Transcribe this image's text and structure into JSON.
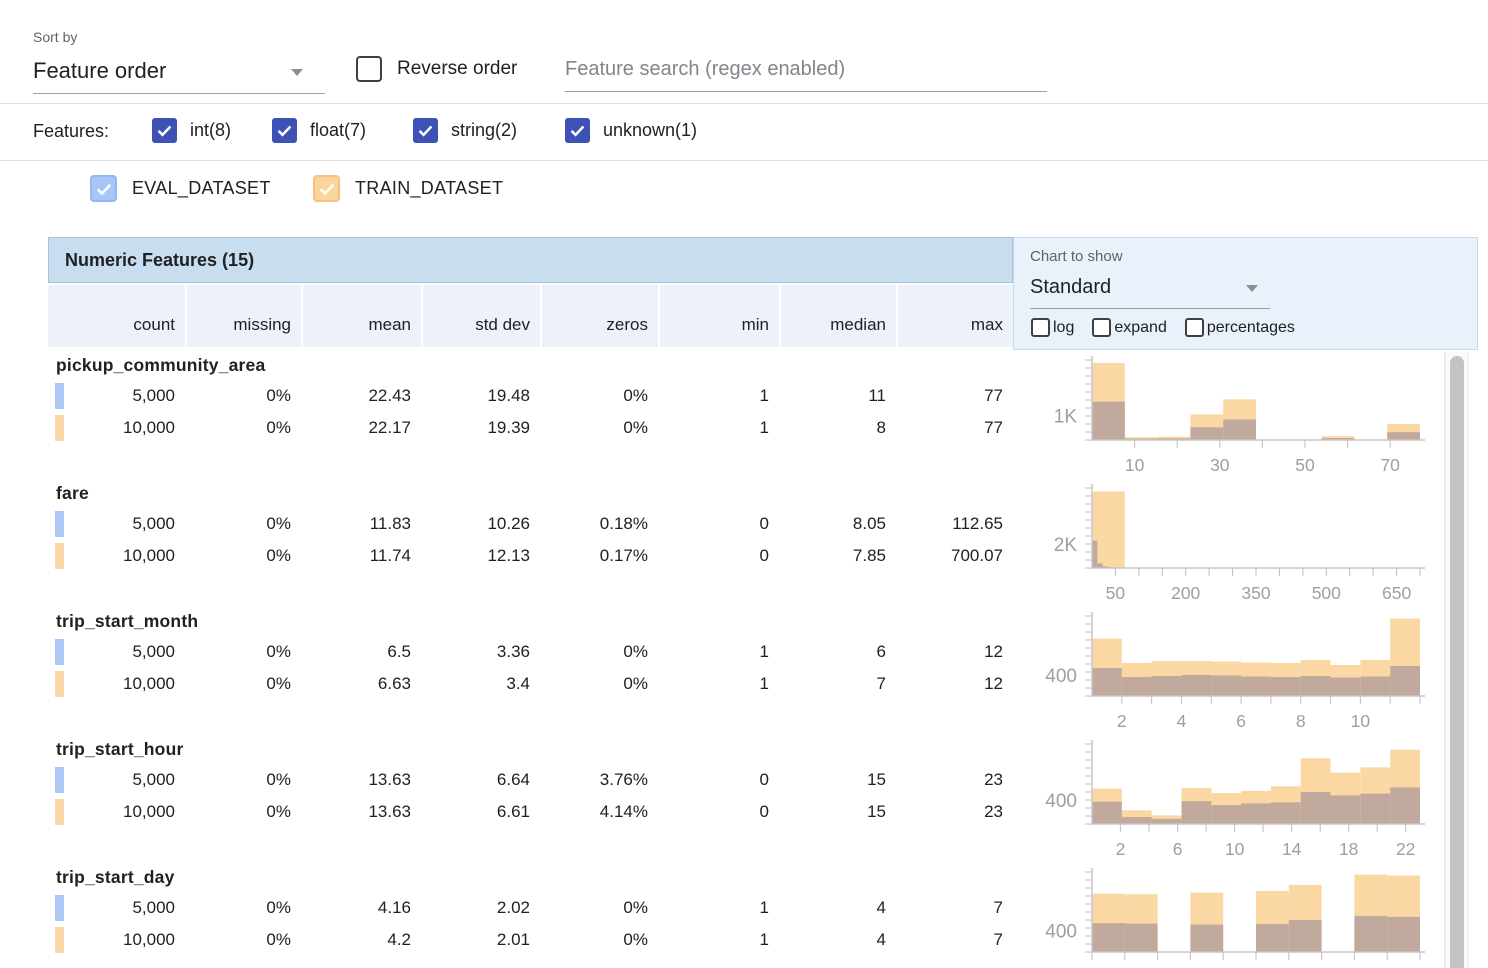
{
  "toolbar": {
    "sort_by_label": "Sort by",
    "sort_by_value": "Feature order",
    "reverse_order_label": "Reverse order",
    "search_placeholder": "Feature search (regex enabled)"
  },
  "features_filter": {
    "label": "Features:",
    "types": [
      {
        "label": "int(8)",
        "checked": true
      },
      {
        "label": "float(7)",
        "checked": true
      },
      {
        "label": "string(2)",
        "checked": true
      },
      {
        "label": "unknown(1)",
        "checked": true
      }
    ],
    "checkbox_color": "#3e51b5"
  },
  "datasets": [
    {
      "name": "EVAL_DATASET",
      "checked": true,
      "color": "#a5c6f6",
      "chip_color": "#adc9f8"
    },
    {
      "name": "TRAIN_DATASET",
      "checked": true,
      "color": "#fcd49d",
      "chip_color": "#fbd8a5"
    }
  ],
  "table": {
    "title": "Numeric Features (15)",
    "columns": [
      "count",
      "missing",
      "mean",
      "std dev",
      "zeros",
      "min",
      "median",
      "max"
    ],
    "chart_controls": {
      "label": "Chart to show",
      "selected": "Standard",
      "checkboxes": [
        {
          "label": "log",
          "checked": false
        },
        {
          "label": "expand",
          "checked": false
        },
        {
          "label": "percentages",
          "checked": false
        }
      ]
    }
  },
  "features": [
    {
      "name": "pickup_community_area",
      "rows": [
        {
          "dataset": "EVAL_DATASET",
          "count": "5,000",
          "missing": "0%",
          "mean": "22.43",
          "std_dev": "19.48",
          "zeros": "0%",
          "min": "1",
          "median": "11",
          "max": "77"
        },
        {
          "dataset": "TRAIN_DATASET",
          "count": "10,000",
          "missing": "0%",
          "mean": "22.17",
          "std_dev": "19.39",
          "zeros": "0%",
          "min": "1",
          "median": "8",
          "max": "77"
        }
      ]
    },
    {
      "name": "fare",
      "rows": [
        {
          "dataset": "EVAL_DATASET",
          "count": "5,000",
          "missing": "0%",
          "mean": "11.83",
          "std_dev": "10.26",
          "zeros": "0.18%",
          "min": "0",
          "median": "8.05",
          "max": "112.65"
        },
        {
          "dataset": "TRAIN_DATASET",
          "count": "10,000",
          "missing": "0%",
          "mean": "11.74",
          "std_dev": "12.13",
          "zeros": "0.17%",
          "min": "0",
          "median": "7.85",
          "max": "700.07"
        }
      ]
    },
    {
      "name": "trip_start_month",
      "rows": [
        {
          "dataset": "EVAL_DATASET",
          "count": "5,000",
          "missing": "0%",
          "mean": "6.5",
          "std_dev": "3.36",
          "zeros": "0%",
          "min": "1",
          "median": "6",
          "max": "12"
        },
        {
          "dataset": "TRAIN_DATASET",
          "count": "10,000",
          "missing": "0%",
          "mean": "6.63",
          "std_dev": "3.4",
          "zeros": "0%",
          "min": "1",
          "median": "7",
          "max": "12"
        }
      ]
    },
    {
      "name": "trip_start_hour",
      "rows": [
        {
          "dataset": "EVAL_DATASET",
          "count": "5,000",
          "missing": "0%",
          "mean": "13.63",
          "std_dev": "6.64",
          "zeros": "3.76%",
          "min": "0",
          "median": "15",
          "max": "23"
        },
        {
          "dataset": "TRAIN_DATASET",
          "count": "10,000",
          "missing": "0%",
          "mean": "13.63",
          "std_dev": "6.61",
          "zeros": "4.14%",
          "min": "0",
          "median": "15",
          "max": "23"
        }
      ]
    },
    {
      "name": "trip_start_day",
      "rows": [
        {
          "dataset": "EVAL_DATASET",
          "count": "5,000",
          "missing": "0%",
          "mean": "4.16",
          "std_dev": "2.02",
          "zeros": "0%",
          "min": "1",
          "median": "4",
          "max": "7"
        },
        {
          "dataset": "TRAIN_DATASET",
          "count": "10,000",
          "missing": "0%",
          "mean": "4.2",
          "std_dev": "2.01",
          "zeros": "0%",
          "min": "1",
          "median": "4",
          "max": "7"
        }
      ]
    }
  ],
  "chart_data": [
    {
      "type": "bar",
      "feature": "pickup_community_area",
      "xlim": [
        0,
        77
      ],
      "ymax": 3400,
      "ylabel": {
        "value": 1000,
        "text": "1K"
      },
      "xticks": [
        10,
        20,
        30,
        40,
        50,
        60,
        70
      ],
      "xlabels": [
        {
          "v": 10,
          "t": "10"
        },
        {
          "v": 30,
          "t": "30"
        },
        {
          "v": 50,
          "t": "50"
        },
        {
          "v": 70,
          "t": "70"
        }
      ],
      "series": [
        {
          "name": "TRAIN_DATASET",
          "color": "#fbd7a4",
          "bin_start": 0,
          "bin_width": 7.7,
          "values": [
            3270,
            120,
            140,
            1090,
            1730,
            20,
            10,
            160,
            20,
            680
          ]
        },
        {
          "name": "EVAL_DATASET_overlap",
          "color": "#c1a99e",
          "bin_start": 0,
          "bin_width": 7.7,
          "values": [
            1630,
            60,
            70,
            540,
            870,
            10,
            5,
            80,
            10,
            330
          ]
        }
      ]
    },
    {
      "type": "bar",
      "feature": "fare",
      "xlim": [
        0,
        700
      ],
      "ymax": 7000,
      "ylabel": {
        "value": 2000,
        "text": "2K"
      },
      "xticks": [
        50,
        100,
        150,
        200,
        250,
        300,
        350,
        400,
        450,
        500,
        550,
        600,
        650,
        700
      ],
      "xlabels": [
        {
          "v": 50,
          "t": "50"
        },
        {
          "v": 200,
          "t": "200"
        },
        {
          "v": 350,
          "t": "350"
        },
        {
          "v": 500,
          "t": "500"
        },
        {
          "v": 650,
          "t": "650"
        }
      ],
      "series": [
        {
          "name": "TRAIN_DATASET",
          "color": "#fbd7a4",
          "bin_start": 0,
          "bin_width": 70,
          "values": [
            6700,
            0,
            0,
            0,
            0,
            0,
            0,
            0,
            0,
            0
          ]
        },
        {
          "name": "EVAL_DATASET_overlap",
          "color": "#c1a99e",
          "bin_start": 0,
          "bin_width": 11.3,
          "values": [
            2400,
            400,
            150,
            80,
            40,
            20,
            10,
            5,
            0,
            0
          ]
        }
      ]
    },
    {
      "type": "bar",
      "feature": "trip_start_month",
      "xlim": [
        1,
        12
      ],
      "ymax": 1600,
      "ylabel": {
        "value": 400,
        "text": "400"
      },
      "xticks": [
        2,
        3,
        4,
        5,
        6,
        7,
        8,
        9,
        10,
        11,
        12
      ],
      "xlabels": [
        {
          "v": 2,
          "t": "2"
        },
        {
          "v": 4,
          "t": "4"
        },
        {
          "v": 6,
          "t": "6"
        },
        {
          "v": 8,
          "t": "8"
        },
        {
          "v": 10,
          "t": "10"
        }
      ],
      "series": [
        {
          "name": "TRAIN_DATASET",
          "color": "#fbd7a4",
          "bin_start": 1,
          "bin_width": 1,
          "values": [
            1150,
            660,
            700,
            700,
            690,
            670,
            660,
            720,
            620,
            720,
            1550
          ]
        },
        {
          "name": "EVAL_DATASET_overlap",
          "color": "#c1a99e",
          "bin_start": 1,
          "bin_width": 1,
          "values": [
            560,
            380,
            400,
            420,
            410,
            390,
            380,
            400,
            370,
            390,
            600
          ]
        }
      ]
    },
    {
      "type": "bar",
      "feature": "trip_start_hour",
      "xlim": [
        0,
        23
      ],
      "ymax": 1400,
      "ylabel": {
        "value": 400,
        "text": "400"
      },
      "xticks": [
        2,
        4,
        6,
        8,
        10,
        12,
        14,
        16,
        18,
        20,
        22
      ],
      "xlabels": [
        {
          "v": 2,
          "t": "2"
        },
        {
          "v": 6,
          "t": "6"
        },
        {
          "v": 10,
          "t": "10"
        },
        {
          "v": 14,
          "t": "14"
        },
        {
          "v": 18,
          "t": "18"
        },
        {
          "v": 22,
          "t": "22"
        }
      ],
      "series": [
        {
          "name": "TRAIN_DATASET",
          "color": "#fbd7a4",
          "bin_start": 0,
          "bin_width": 2.0909,
          "values": [
            620,
            240,
            150,
            630,
            540,
            580,
            660,
            1150,
            900,
            990,
            1300
          ]
        },
        {
          "name": "EVAL_DATASET_overlap",
          "color": "#c1a99e",
          "bin_start": 0,
          "bin_width": 2.0909,
          "values": [
            390,
            120,
            90,
            400,
            330,
            360,
            380,
            560,
            500,
            530,
            640
          ]
        }
      ]
    },
    {
      "type": "bar",
      "feature": "trip_start_day",
      "xlim": [
        1,
        7
      ],
      "ymax": 1550,
      "ylabel": {
        "value": 400,
        "text": "400"
      },
      "xticks": [
        1,
        1.6,
        2.2,
        2.8,
        3.4,
        4,
        4.6,
        5.2,
        5.8,
        6.4,
        7
      ],
      "xlabels": [],
      "series": [
        {
          "name": "TRAIN_DATASET",
          "color": "#fbd7a4",
          "bin_start": 1,
          "bin_width": 0.6,
          "values": [
            1130,
            1120,
            0,
            1150,
            0,
            1180,
            1300,
            0,
            1500,
            1480
          ]
        },
        {
          "name": "EVAL_DATASET_overlap",
          "color": "#c1a99e",
          "bin_start": 1,
          "bin_width": 0.6,
          "values": [
            560,
            550,
            0,
            530,
            0,
            540,
            620,
            0,
            700,
            680
          ]
        }
      ]
    }
  ]
}
